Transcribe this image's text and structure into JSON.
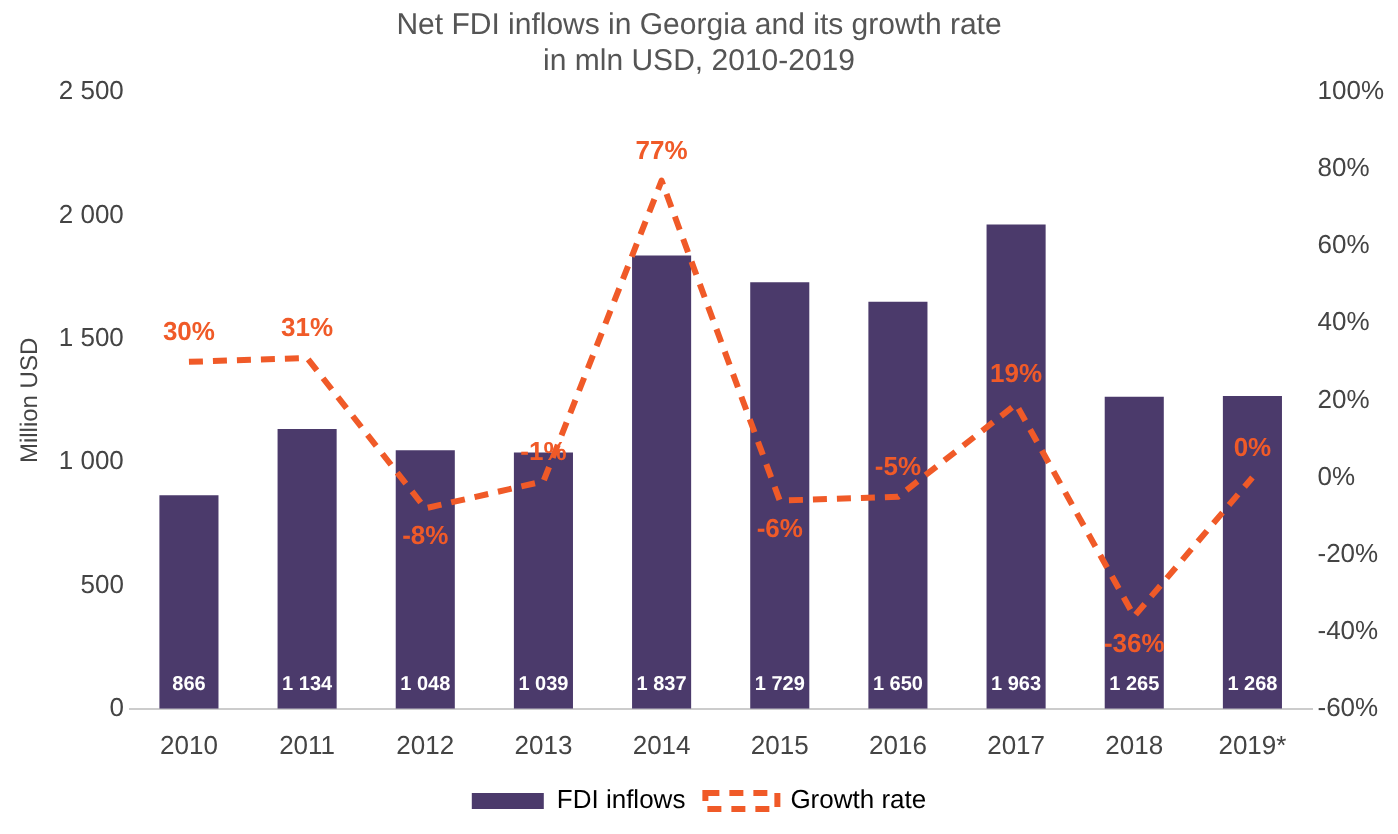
{
  "chart_data": {
    "type": "bar",
    "title": "Net FDI inflows in Georgia and its growth rate\nin mln USD, 2010-2019",
    "ylabel": "Million USD",
    "categories": [
      "2010",
      "2011",
      "2012",
      "2013",
      "2014",
      "2015",
      "2016",
      "2017",
      "2018",
      "2019*"
    ],
    "series": [
      {
        "name": "FDI inflows",
        "color": "#4b3a6b",
        "values": [
          866,
          1134,
          1048,
          1039,
          1837,
          1729,
          1650,
          1963,
          1265,
          1268
        ],
        "value_labels": [
          "866",
          "1 134",
          "1 048",
          "1 039",
          "1 837",
          "1 729",
          "1 650",
          "1 963",
          "1 265",
          "1 268"
        ]
      },
      {
        "name": "Growth rate",
        "type": "line",
        "axis": "y2",
        "color": "#f05a28",
        "line_style": "dashed",
        "values": [
          30,
          31,
          -8,
          -1,
          77,
          -6,
          -5,
          19,
          -36,
          0
        ],
        "value_labels": [
          "30%",
          "31%",
          "-8%",
          "-1%",
          "77%",
          "-6%",
          "-5%",
          "19%",
          "-36%",
          "0%"
        ]
      }
    ],
    "ylim": [
      0,
      2500
    ],
    "yticks": [
      0,
      500,
      {
        "value": 1000,
        "label": "1 000"
      },
      {
        "value": 1500,
        "label": "1 500"
      },
      {
        "value": 2000,
        "label": "2 000"
      },
      {
        "value": 2500,
        "label": "2 500"
      }
    ],
    "y2lim": [
      -60,
      100
    ],
    "y2ticks": [
      {
        "value": -60,
        "label": "-60%"
      },
      {
        "value": -40,
        "label": "-40%"
      },
      {
        "value": -20,
        "label": "-20%"
      },
      {
        "value": 0,
        "label": "0%"
      },
      {
        "value": 20,
        "label": "20%"
      },
      {
        "value": 40,
        "label": "40%"
      },
      {
        "value": 60,
        "label": "60%"
      },
      {
        "value": 80,
        "label": "80%"
      },
      {
        "value": 100,
        "label": "100%"
      }
    ],
    "grid": false,
    "legend": "bottom"
  }
}
